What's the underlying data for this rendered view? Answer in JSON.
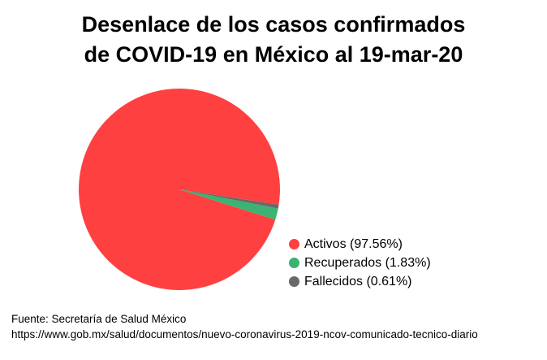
{
  "title_line1": "Desenlace de los casos confirmados",
  "title_line2": "de COVID-19 en México al 19-mar-20",
  "source_line1": "Fuente: Secretaría de Salud México",
  "source_line2": "https://www.gob.mx/salud/documentos/nuevo-coronavirus-2019-ncov-comunicado-tecnico-diario",
  "chart_data": {
    "type": "pie",
    "title": "Desenlace de los casos confirmados de COVID-19 en México al 19-mar-20",
    "legend_position": "bottom-right",
    "slices": [
      {
        "label": "Activos (97.56%)",
        "value": 97.56,
        "color": "#ff4040"
      },
      {
        "label": "Recuperados (1.83%)",
        "value": 1.83,
        "color": "#3cb371"
      },
      {
        "label": "Fallecidos (0.61%)",
        "value": 0.61,
        "color": "#696969"
      }
    ]
  }
}
